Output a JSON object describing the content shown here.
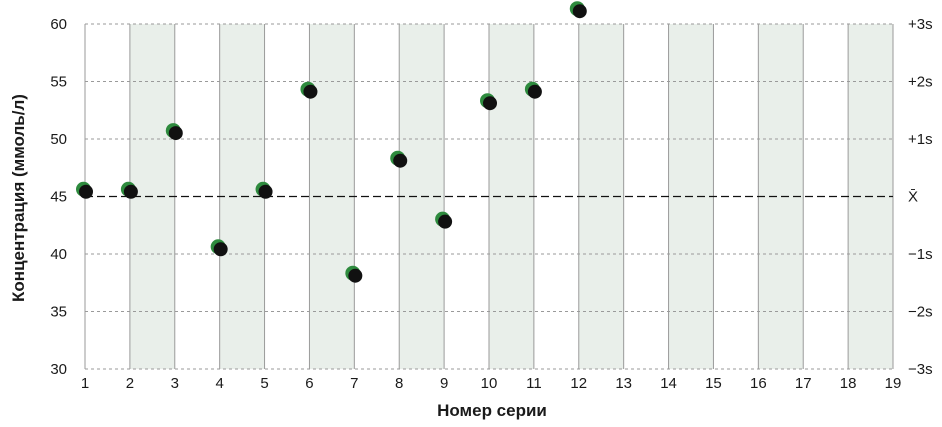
{
  "chart_data": {
    "type": "scatter",
    "xlabel": "Номер серии",
    "ylabel": "Концентрация (ммоль/л)",
    "xlim": [
      1,
      19
    ],
    "ylim": [
      30,
      60
    ],
    "x_ticks": [
      "1",
      "2",
      "3",
      "4",
      "5",
      "6",
      "7",
      "8",
      "9",
      "10",
      "11",
      "12",
      "13",
      "14",
      "15",
      "16",
      "17",
      "18",
      "19"
    ],
    "y_ticks": [
      "30",
      "35",
      "40",
      "45",
      "50",
      "55",
      "60"
    ],
    "mean": 45,
    "sd": 5,
    "right_labels": [
      {
        "value": 60,
        "label": "+3s"
      },
      {
        "value": 55,
        "label": "+2s"
      },
      {
        "value": 50,
        "label": "+1s"
      },
      {
        "value": 45,
        "label": "X̄"
      },
      {
        "value": 40,
        "label": "−1s"
      },
      {
        "value": 35,
        "label": "−2s"
      },
      {
        "value": 30,
        "label": "−3s"
      }
    ],
    "grid": true,
    "shaded_bands": [
      [
        2,
        3
      ],
      [
        4,
        5
      ],
      [
        6,
        7
      ],
      [
        8,
        9
      ],
      [
        10,
        11
      ],
      [
        12,
        13
      ],
      [
        14,
        15
      ],
      [
        16,
        17
      ],
      [
        18,
        19
      ]
    ],
    "points": [
      {
        "x": 1,
        "y": 45.5
      },
      {
        "x": 2,
        "y": 45.5
      },
      {
        "x": 3,
        "y": 50.6
      },
      {
        "x": 4,
        "y": 40.5
      },
      {
        "x": 5,
        "y": 45.5
      },
      {
        "x": 6,
        "y": 54.2
      },
      {
        "x": 7,
        "y": 38.2
      },
      {
        "x": 8,
        "y": 48.2
      },
      {
        "x": 9,
        "y": 42.9
      },
      {
        "x": 10,
        "y": 53.2
      },
      {
        "x": 11,
        "y": 54.2
      },
      {
        "x": 12,
        "y": 61.2
      }
    ],
    "colors": {
      "point_fill": "#111111",
      "point_edge": "#2e8b3e",
      "band": "#e9efea",
      "grid": "#9a9a9a",
      "mean_line": "#111111"
    }
  }
}
